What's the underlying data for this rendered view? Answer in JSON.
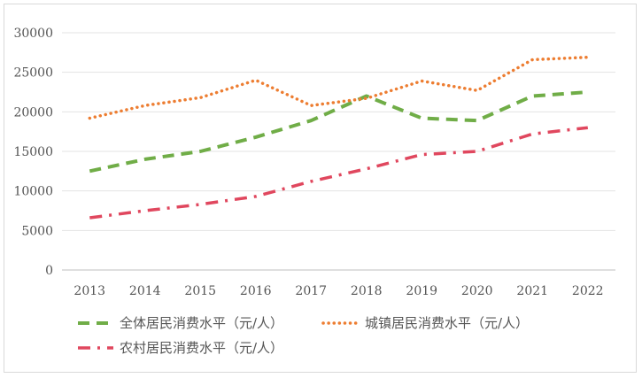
{
  "chart_data": {
    "type": "line",
    "title": "",
    "xlabel": "",
    "ylabel": "",
    "x": [
      "2013",
      "2014",
      "2015",
      "2016",
      "2017",
      "2018",
      "2019",
      "2020",
      "2021",
      "2022"
    ],
    "ylim": [
      0,
      30000
    ],
    "yticks": [
      0,
      5000,
      10000,
      15000,
      20000,
      25000,
      30000
    ],
    "grid": true,
    "legend_position": "bottom",
    "series": [
      {
        "name": "全体居民消费水平（元/人）",
        "color": "#70ad47",
        "dash": "dashed",
        "values": [
          12500,
          14000,
          15000,
          16800,
          18900,
          22000,
          19200,
          18900,
          22000,
          22500
        ]
      },
      {
        "name": "城镇居民消费水平（元/人）",
        "color": "#ed7d31",
        "dash": "dotted",
        "values": [
          19200,
          20800,
          21800,
          24000,
          20800,
          21700,
          23900,
          22700,
          26600,
          26900
        ]
      },
      {
        "name": "农村居民消费水平（元/人）",
        "color": "#e0475e",
        "dash": "dash-dot",
        "values": [
          6600,
          7500,
          8300,
          9300,
          11200,
          12800,
          14600,
          15000,
          17200,
          18000
        ]
      }
    ]
  }
}
